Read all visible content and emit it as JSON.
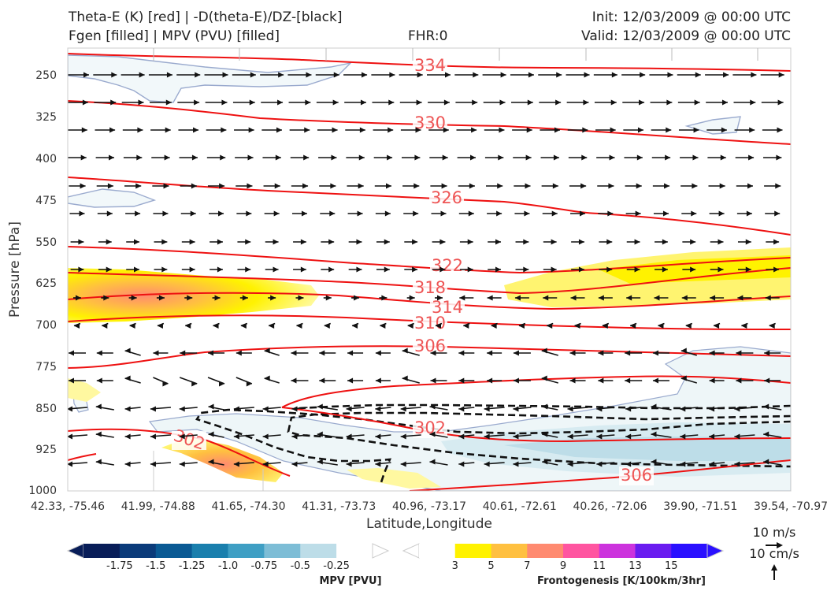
{
  "header": {
    "line1_left": "Theta-E (K) [red] | -D(theta-E)/DZ-[black]",
    "line2_left": "Fgen [filled] | MPV (PVU) [filled]",
    "fhr": "FHR:0",
    "init": "Init: 12/03/2009 @ 00:00 UTC",
    "valid": "Valid: 12/03/2009 @ 00:00 UTC"
  },
  "chart_data": {
    "type": "cross-section",
    "ylabel": "Pressure [hPa]",
    "xlabel": "Latitude,Longitude",
    "y_ticks": [
      "250",
      "325",
      "400",
      "475",
      "550",
      "625",
      "700",
      "775",
      "850",
      "925",
      "1000"
    ],
    "x_ticks": [
      "42.33, -75.46",
      "41.99, -74.88",
      "41.65, -74.30",
      "41.31, -73.73",
      "40.96, -73.17",
      "40.61, -72.61",
      "40.26, -72.06",
      "39.90, -71.51",
      "39.54, -70.97"
    ],
    "theta_e_contour_labels": [
      "334",
      "330",
      "326",
      "322",
      "318",
      "314",
      "310",
      "306",
      "302",
      "302",
      "306"
    ],
    "theta_e_color": "#ee1111",
    "wind_vector_color": "#111111"
  },
  "vector_keys": {
    "horizontal": "10 m/s",
    "vertical": "10 cm/s"
  },
  "colorbars": {
    "mpv": {
      "title": "MPV [PVU]",
      "ticks": [
        "-1.75",
        "-1.5",
        "-1.25",
        "-1.0",
        "-0.75",
        "-0.5",
        "-0.25"
      ],
      "colors": [
        "#081d58",
        "#0b3b7a",
        "#0a5a94",
        "#1a7fad",
        "#3f9fc4",
        "#7dbdd6",
        "#bddde8",
        "#ffffff"
      ]
    },
    "frontogenesis": {
      "title": "Frontogenesis [K/100km/3hr]",
      "ticks": [
        "3",
        "5",
        "7",
        "9",
        "11",
        "13",
        "15"
      ],
      "colors": [
        "#ffffff",
        "#fff200",
        "#ffc040",
        "#ff8a70",
        "#ff55a0",
        "#cc33dd",
        "#6a1cf0",
        "#2a10ff"
      ]
    }
  }
}
